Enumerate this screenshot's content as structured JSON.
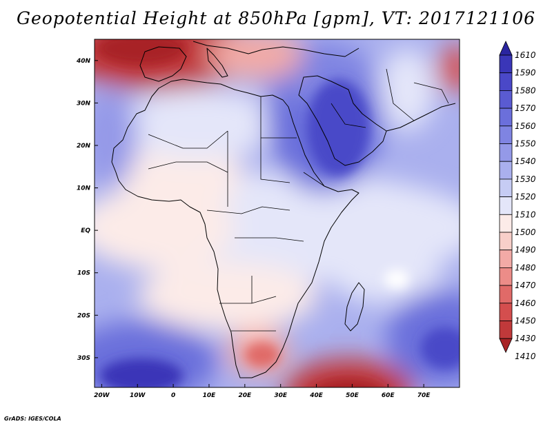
{
  "title": "Geopotential Height at 850hPa [gpm], VT: 2017121106",
  "credit": "GrADS: IGES/COLA",
  "map": {
    "variable": "Geopotential Height",
    "level": "850hPa",
    "units": "gpm",
    "valid_time": "2017121106",
    "lon_range": [
      -22,
      80
    ],
    "lat_range": [
      -37,
      45
    ],
    "x_ticks": [
      "20W",
      "10W",
      "0",
      "10E",
      "20E",
      "30E",
      "40E",
      "50E",
      "60E",
      "70E"
    ],
    "x_tick_values": [
      -20,
      -10,
      0,
      10,
      20,
      30,
      40,
      50,
      60,
      70
    ],
    "y_ticks": [
      "40N",
      "30N",
      "20N",
      "10N",
      "EQ",
      "10S",
      "20S",
      "30S"
    ],
    "y_tick_values": [
      40,
      30,
      20,
      10,
      0,
      -10,
      -20,
      -30
    ]
  },
  "colorbar": {
    "labels": [
      "1610",
      "1590",
      "1580",
      "1570",
      "1560",
      "1550",
      "1540",
      "1530",
      "1520",
      "1510",
      "1500",
      "1490",
      "1480",
      "1470",
      "1460",
      "1450",
      "1430",
      "1410"
    ],
    "colors": [
      "#2a25a0",
      "#3a36b8",
      "#4a48c8",
      "#5a5bd2",
      "#6b6fdb",
      "#7f84e2",
      "#9499e8",
      "#aab0ee",
      "#c6ccf4",
      "#e4e6f9",
      "#fcebe8",
      "#f8cfc9",
      "#f2aaa6",
      "#ec8c88",
      "#e06a68",
      "#d44e4e",
      "#c0393a",
      "#a82426"
    ]
  }
}
